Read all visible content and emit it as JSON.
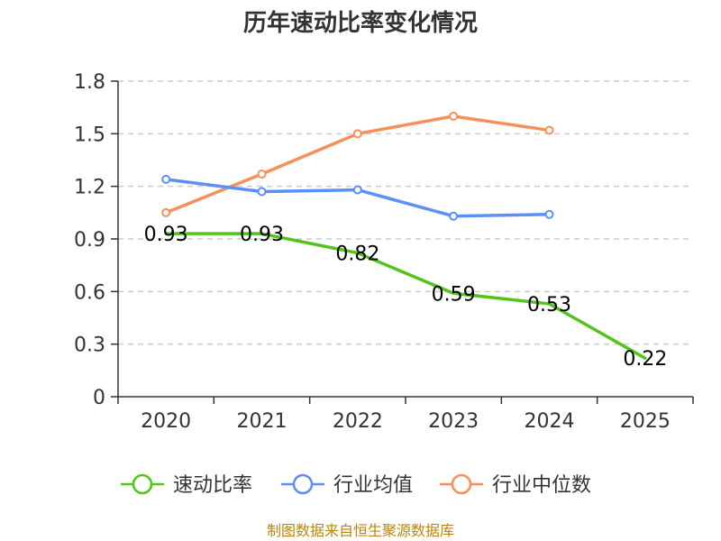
{
  "chart_data": {
    "type": "line",
    "title": "历年速动比率变化情况",
    "categories": [
      "2020",
      "2021",
      "2022",
      "2023",
      "2024",
      "2025"
    ],
    "y_ticks": [
      "0",
      "0.3",
      "0.6",
      "0.9",
      "1.2",
      "1.5",
      "1.8"
    ],
    "ylim": [
      0,
      1.8
    ],
    "grid": true,
    "legend_position": "bottom",
    "series": [
      {
        "name": "速动比率",
        "color": "#52c41a",
        "values": [
          0.93,
          0.93,
          0.82,
          0.59,
          0.53,
          0.22
        ],
        "data_labels": [
          "0.93",
          "0.93",
          "0.82",
          "0.59",
          "0.53",
          "0.22"
        ],
        "markers": false
      },
      {
        "name": "行业均值",
        "color": "#5b8ff9",
        "values": [
          1.24,
          1.17,
          1.18,
          1.03,
          1.04,
          null
        ],
        "markers": true
      },
      {
        "name": "行业中位数",
        "color": "#f6905a",
        "values": [
          1.05,
          1.27,
          1.5,
          1.6,
          1.52,
          null
        ],
        "markers": true
      }
    ],
    "source": "制图数据来自恒生聚源数据库"
  }
}
